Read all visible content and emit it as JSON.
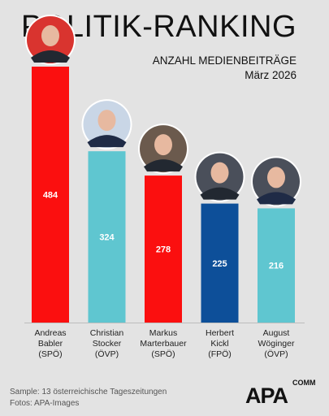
{
  "header": {
    "title": "POLITIK-RANKING",
    "subtitle": "ANZAHL MEDIENBEITRÄGE",
    "date": "März 2026"
  },
  "chart_data": {
    "type": "bar",
    "categories": [
      [
        "Andreas",
        "Babler",
        "(SPÖ)"
      ],
      [
        "Christian",
        "Stocker",
        "(ÖVP)"
      ],
      [
        "Markus",
        "Marterbauer",
        "(SPÖ)"
      ],
      [
        "Herbert",
        "Kickl",
        "(FPÖ)"
      ],
      [
        "August",
        "Wöginger",
        "(ÖVP)"
      ]
    ],
    "values": [
      484,
      324,
      278,
      225,
      216
    ],
    "colors": [
      "#fb0f0f",
      "#5fc6d0",
      "#fb0f0f",
      "#0d4f99",
      "#5fc6d0"
    ],
    "ylim": [
      0,
      520
    ],
    "grid": false,
    "legend": "none"
  },
  "footer": {
    "sample": "Sample: 13 österreichische Tageszeitungen",
    "photos": "Fotos: APA-Images"
  },
  "logo": {
    "text": "APA",
    "suffix": "COMM"
  }
}
